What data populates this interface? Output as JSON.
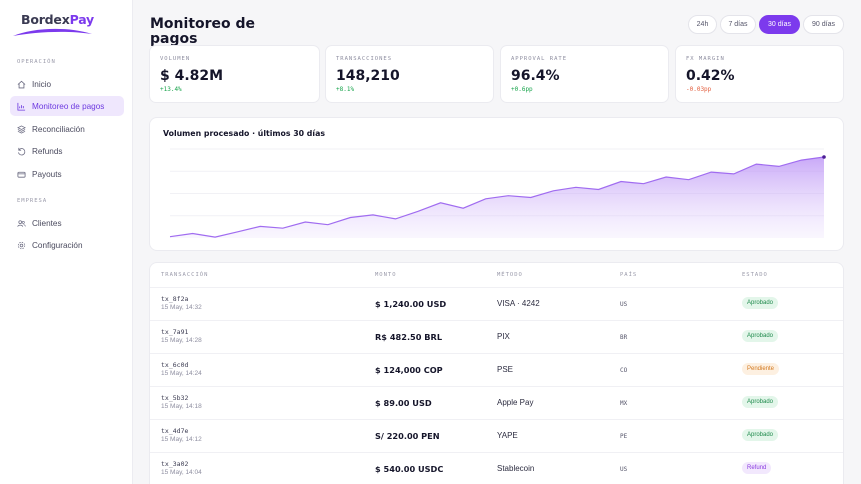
{
  "brand": {
    "name_part1": "Bordex",
    "name_part2": "Pay"
  },
  "sidebar": {
    "section1": "OPERACIÓN",
    "items": [
      {
        "label": "Inicio",
        "icon": "home-icon"
      },
      {
        "label": "Monitoreo de pagos",
        "icon": "chart-icon",
        "active": true
      },
      {
        "label": "Reconciliación",
        "icon": "layers-icon"
      },
      {
        "label": "Refunds",
        "icon": "refund-icon"
      },
      {
        "label": "Payouts",
        "icon": "wallet-icon"
      }
    ],
    "section2": "EMPRESA",
    "items2": [
      {
        "label": "Clientes",
        "icon": "users-icon"
      },
      {
        "label": "Configuración",
        "icon": "gear-icon"
      }
    ]
  },
  "header": {
    "title": "Monitoreo de pagos",
    "ranges": [
      "24h",
      "7 días",
      "30 días",
      "90 días"
    ],
    "active_range": "30 días"
  },
  "kpis": [
    {
      "label": "VOLUMEN",
      "value": "$ 4.82M",
      "delta": "+13.4%",
      "trend": "up"
    },
    {
      "label": "TRANSACCIONES",
      "value": "148,210",
      "delta": "+8.1%",
      "trend": "up"
    },
    {
      "label": "APPROVAL RATE",
      "value": "96.4%",
      "delta": "+0.6pp",
      "trend": "up"
    },
    {
      "label": "FX MARGIN",
      "value": "0.42%",
      "delta": "-0.03pp",
      "trend": "down"
    }
  ],
  "chart_data": {
    "type": "area",
    "title": "Volumen procesado · últimos 30 días",
    "xlabel": "",
    "ylabel": "",
    "x": [
      1,
      2,
      3,
      4,
      5,
      6,
      7,
      8,
      9,
      10,
      11,
      12,
      13,
      14,
      15,
      16,
      17,
      18,
      19,
      20,
      21,
      22,
      23,
      24,
      25,
      26,
      27,
      28,
      29,
      30
    ],
    "values": [
      3,
      10,
      2,
      14,
      26,
      22,
      36,
      30,
      46,
      52,
      43,
      60,
      79,
      67,
      88,
      95,
      91,
      106,
      114,
      109,
      127,
      122,
      137,
      131,
      148,
      144,
      166,
      161,
      175,
      182
    ],
    "ylim": [
      0,
      200
    ],
    "grid": true,
    "accent": "#7c3aed"
  },
  "table": {
    "columns": [
      "TRANSACCIÓN",
      "MONTO",
      "MÉTODO",
      "PAÍS",
      "ESTADO"
    ],
    "rows": [
      {
        "id": "tx_8f2a",
        "date": "15 May, 14:32",
        "amount": "$ 1,240.00 USD",
        "method": "VISA · 4242",
        "country": "US",
        "status": "Aprobado",
        "kind": "ok"
      },
      {
        "id": "tx_7a91",
        "date": "15 May, 14:28",
        "amount": "R$ 482.50 BRL",
        "method": "PIX",
        "country": "BR",
        "status": "Aprobado",
        "kind": "ok"
      },
      {
        "id": "tx_6c0d",
        "date": "15 May, 14:24",
        "amount": "$ 124,000 COP",
        "method": "PSE",
        "country": "CO",
        "status": "Pendiente",
        "kind": "pend"
      },
      {
        "id": "tx_5b32",
        "date": "15 May, 14:18",
        "amount": "$ 89.00 USD",
        "method": "Apple Pay",
        "country": "MX",
        "status": "Aprobado",
        "kind": "ok"
      },
      {
        "id": "tx_4d7e",
        "date": "15 May, 14:12",
        "amount": "S/ 220.00 PEN",
        "method": "YAPE",
        "country": "PE",
        "status": "Aprobado",
        "kind": "ok"
      },
      {
        "id": "tx_3a02",
        "date": "15 May, 14:04",
        "amount": "$ 540.00 USDC",
        "method": "Stablecoin",
        "country": "US",
        "status": "Refund",
        "kind": "refund"
      }
    ]
  }
}
